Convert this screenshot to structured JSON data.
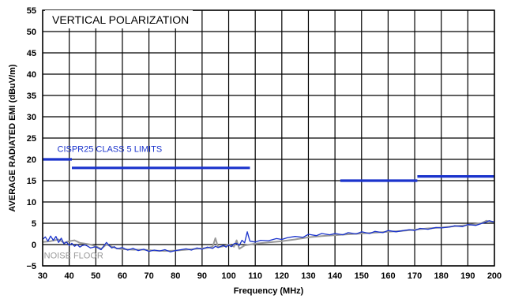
{
  "chart_data": {
    "type": "line",
    "title": "VERTICAL POLARIZATION",
    "xlabel": "Frequency (MHz)",
    "ylabel": "AVERAGE RADIATED EMI (dBuV/m)",
    "xlim": [
      30,
      200
    ],
    "ylim": [
      -5,
      55
    ],
    "xticks": [
      30,
      40,
      50,
      60,
      70,
      80,
      90,
      100,
      110,
      120,
      130,
      140,
      150,
      160,
      170,
      180,
      190,
      200
    ],
    "yticks": [
      -5,
      0,
      5,
      10,
      15,
      20,
      25,
      30,
      35,
      40,
      45,
      50,
      55
    ],
    "grid": true,
    "limits": {
      "label": "CISPR25 CLASS 5 LIMITS",
      "color": "#1a33cc",
      "segments": [
        {
          "x": [
            30,
            41
          ],
          "y": 20
        },
        {
          "x": [
            41,
            108
          ],
          "y": 18
        },
        {
          "x": [
            142,
            171
          ],
          "y": 15
        },
        {
          "x": [
            171,
            200
          ],
          "y": 16
        }
      ]
    },
    "series": [
      {
        "name": "NOISE FLOOR",
        "color": "#999999",
        "x": [
          30,
          33,
          36,
          38,
          40,
          42,
          44,
          46,
          48,
          50,
          52,
          54,
          56,
          58,
          60,
          64,
          68,
          72,
          76,
          80,
          84,
          88,
          92,
          94,
          95,
          96,
          98,
          100,
          102,
          103,
          104,
          106,
          108,
          110,
          115,
          120,
          125,
          130,
          135,
          140,
          145,
          150,
          155,
          160,
          165,
          170,
          175,
          180,
          185,
          190,
          195,
          197,
          200
        ],
        "y": [
          0.6,
          0.8,
          1.2,
          0.4,
          0.8,
          1.0,
          0.4,
          0.2,
          0.0,
          -0.4,
          -1.0,
          0.0,
          -0.5,
          -0.9,
          -1.1,
          -1.2,
          -1.2,
          -1.4,
          -1.5,
          -1.4,
          -1.2,
          -1.0,
          -0.8,
          -0.5,
          1.5,
          -0.6,
          -0.4,
          0.0,
          -0.5,
          1.0,
          -1.0,
          -0.2,
          0.0,
          0.2,
          0.5,
          0.8,
          1.2,
          1.7,
          2.0,
          2.2,
          2.4,
          2.6,
          2.8,
          3.0,
          3.2,
          3.5,
          3.8,
          4.0,
          4.3,
          4.6,
          5.0,
          5.6,
          5.2
        ]
      },
      {
        "name": "",
        "color": "#1a33cc",
        "x": [
          30,
          31,
          32,
          33,
          34,
          35,
          36,
          37,
          38,
          39,
          40,
          41,
          42,
          43,
          44,
          45,
          46,
          47,
          48,
          50,
          52,
          54,
          55,
          56,
          57,
          58,
          60,
          62,
          64,
          66,
          68,
          70,
          72,
          74,
          76,
          78,
          80,
          82,
          84,
          86,
          88,
          90,
          92,
          94,
          95,
          96,
          98,
          99,
          100,
          101,
          102,
          103,
          104,
          105,
          106,
          107,
          108,
          110,
          112,
          115,
          118,
          120,
          122,
          125,
          128,
          130,
          133,
          135,
          138,
          140,
          143,
          145,
          148,
          150,
          153,
          155,
          158,
          160,
          163,
          165,
          168,
          170,
          172,
          175,
          178,
          180,
          183,
          185,
          188,
          190,
          193,
          195,
          197,
          198,
          200
        ],
        "y": [
          1.2,
          1.8,
          0.8,
          2.0,
          1.0,
          1.9,
          0.5,
          1.5,
          0.2,
          0.6,
          -0.2,
          0.3,
          -0.4,
          0.0,
          -0.6,
          -0.2,
          -0.1,
          -0.4,
          -0.8,
          -0.5,
          -1.2,
          0.5,
          -0.2,
          -0.8,
          -0.5,
          -1.0,
          -0.7,
          -1.3,
          -0.9,
          -1.4,
          -1.1,
          -1.6,
          -1.3,
          -1.5,
          -1.2,
          -1.7,
          -1.4,
          -1.2,
          -1.0,
          -1.3,
          -0.8,
          -1.1,
          -0.6,
          -0.9,
          -0.4,
          -0.7,
          -0.2,
          -0.6,
          -0.1,
          -0.5,
          0.2,
          0.3,
          -0.2,
          1.0,
          0.4,
          3.0,
          0.8,
          0.6,
          1.0,
          0.9,
          1.4,
          1.2,
          1.6,
          1.9,
          1.7,
          2.4,
          2.1,
          2.6,
          2.3,
          2.6,
          2.3,
          2.8,
          2.5,
          3.0,
          2.6,
          3.1,
          2.8,
          3.3,
          3.0,
          3.2,
          3.5,
          3.3,
          3.8,
          3.6,
          4.0,
          3.9,
          4.1,
          4.4,
          4.2,
          4.7,
          4.5,
          4.9,
          5.3,
          5.6,
          5.3
        ]
      }
    ],
    "annotations": [
      {
        "text": "NOISE FLOOR",
        "x": 30.5,
        "y": -2.5,
        "color": "#999999"
      },
      {
        "text": "CISPR25 CLASS 5 LIMITS",
        "x": 35.5,
        "y": 22.5,
        "color": "#1a33cc"
      }
    ]
  }
}
